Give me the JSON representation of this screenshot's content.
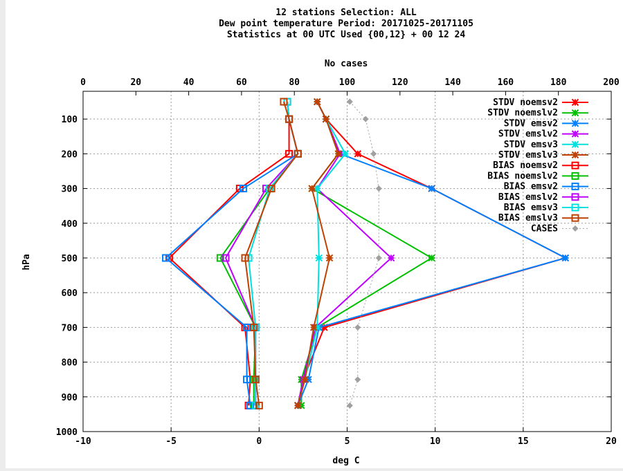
{
  "chart_data": {
    "type": "line",
    "title": [
      "12 stations Selection: ALL",
      "Dew point temperature  Period: 20171025-20171105",
      "Statistics at 00 UTC  Used {00,12} + 00 12 24"
    ],
    "xlabel": "deg C",
    "x2label": "No cases",
    "ylabel": "hPa",
    "xlim": [
      -10,
      20
    ],
    "x2lim": [
      0,
      200
    ],
    "ylim": [
      1000,
      20
    ],
    "x_ticks": [
      -10,
      -5,
      0,
      5,
      10,
      15,
      20
    ],
    "x2_ticks": [
      0,
      20,
      40,
      60,
      80,
      100,
      120,
      140,
      160,
      180,
      200
    ],
    "y_ticks": [
      100,
      200,
      300,
      400,
      500,
      600,
      700,
      800,
      900,
      1000
    ],
    "grid": true,
    "legend_position": "top-right",
    "series": [
      {
        "name": "STDV noemsv2",
        "color": "#ff0000",
        "marker": "star",
        "points": [
          [
            3.3,
            50
          ],
          [
            3.8,
            100
          ],
          [
            5.6,
            200
          ],
          [
            9.8,
            300
          ],
          [
            17.4,
            500
          ],
          [
            3.7,
            700
          ],
          [
            2.5,
            850
          ],
          [
            2.2,
            925
          ]
        ]
      },
      {
        "name": "STDV noemslv2",
        "color": "#00c000",
        "marker": "star",
        "points": [
          [
            3.3,
            50
          ],
          [
            3.8,
            100
          ],
          [
            4.5,
            200
          ],
          [
            3.0,
            300
          ],
          [
            9.8,
            500
          ],
          [
            3.3,
            700
          ],
          [
            2.4,
            850
          ],
          [
            2.4,
            925
          ]
        ]
      },
      {
        "name": "STDV emsv2",
        "color": "#0080ff",
        "marker": "star",
        "points": [
          [
            3.3,
            50
          ],
          [
            3.8,
            100
          ],
          [
            4.6,
            200
          ],
          [
            9.8,
            300
          ],
          [
            17.4,
            500
          ],
          [
            3.4,
            700
          ],
          [
            2.8,
            850
          ],
          [
            2.2,
            925
          ]
        ]
      },
      {
        "name": "STDV emslv2",
        "color": "#c000ff",
        "marker": "star",
        "points": [
          [
            3.3,
            50
          ],
          [
            3.8,
            100
          ],
          [
            4.6,
            200
          ],
          [
            3.3,
            300
          ],
          [
            7.5,
            500
          ],
          [
            3.2,
            700
          ],
          [
            2.5,
            850
          ],
          [
            2.2,
            925
          ]
        ]
      },
      {
        "name": "STDV emsv3",
        "color": "#00e0e0",
        "marker": "star",
        "points": [
          [
            3.3,
            50
          ],
          [
            3.8,
            100
          ],
          [
            4.9,
            200
          ],
          [
            3.3,
            300
          ],
          [
            3.4,
            500
          ],
          [
            3.3,
            700
          ],
          [
            2.6,
            850
          ],
          [
            2.2,
            925
          ]
        ]
      },
      {
        "name": "STDV emslv3",
        "color": "#c04000",
        "marker": "star",
        "points": [
          [
            3.3,
            50
          ],
          [
            3.8,
            100
          ],
          [
            4.5,
            200
          ],
          [
            3.0,
            300
          ],
          [
            4.0,
            500
          ],
          [
            3.1,
            700
          ],
          [
            2.6,
            850
          ],
          [
            2.2,
            925
          ]
        ]
      },
      {
        "name": "BIAS noemsv2",
        "color": "#ff0000",
        "marker": "square",
        "points": [
          [
            1.6,
            50
          ],
          [
            1.7,
            100
          ],
          [
            1.7,
            200
          ],
          [
            -1.1,
            300
          ],
          [
            -5.1,
            500
          ],
          [
            -0.8,
            700
          ],
          [
            -0.5,
            850
          ],
          [
            -0.6,
            925
          ]
        ]
      },
      {
        "name": "BIAS noemslv2",
        "color": "#00c000",
        "marker": "square",
        "points": [
          [
            1.6,
            50
          ],
          [
            1.7,
            100
          ],
          [
            2.2,
            200
          ],
          [
            0.6,
            300
          ],
          [
            -2.2,
            500
          ],
          [
            -0.2,
            700
          ],
          [
            -0.3,
            850
          ],
          [
            -0.3,
            925
          ]
        ]
      },
      {
        "name": "BIAS emsv2",
        "color": "#0080ff",
        "marker": "square",
        "points": [
          [
            1.6,
            50
          ],
          [
            1.7,
            100
          ],
          [
            2.2,
            200
          ],
          [
            -0.9,
            300
          ],
          [
            -5.3,
            500
          ],
          [
            -0.7,
            700
          ],
          [
            -0.7,
            850
          ],
          [
            -0.5,
            925
          ]
        ]
      },
      {
        "name": "BIAS emslv2",
        "color": "#c000ff",
        "marker": "square",
        "points": [
          [
            1.6,
            50
          ],
          [
            1.7,
            100
          ],
          [
            2.2,
            200
          ],
          [
            0.4,
            300
          ],
          [
            -1.9,
            500
          ],
          [
            -0.2,
            700
          ],
          [
            -0.2,
            850
          ],
          [
            -0.2,
            925
          ]
        ]
      },
      {
        "name": "BIAS emsv3",
        "color": "#00e0e0",
        "marker": "square",
        "points": [
          [
            1.6,
            50
          ],
          [
            1.7,
            100
          ],
          [
            2.2,
            200
          ],
          [
            0.6,
            300
          ],
          [
            -0.6,
            500
          ],
          [
            -0.2,
            700
          ],
          [
            -0.2,
            850
          ],
          [
            -0.2,
            925
          ]
        ]
      },
      {
        "name": "BIAS emslv3",
        "color": "#c04000",
        "marker": "square",
        "points": [
          [
            1.4,
            50
          ],
          [
            1.7,
            100
          ],
          [
            2.2,
            200
          ],
          [
            0.7,
            300
          ],
          [
            -0.8,
            500
          ],
          [
            -0.3,
            700
          ],
          [
            -0.2,
            850
          ],
          [
            0.0,
            925
          ]
        ]
      },
      {
        "name": "CASES",
        "color": "#a0a0a0",
        "marker": "diamond",
        "dashed": true,
        "axis": "x2",
        "points": [
          [
            101,
            50
          ],
          [
            107,
            100
          ],
          [
            110,
            200
          ],
          [
            112,
            300
          ],
          [
            112,
            500
          ],
          [
            104,
            700
          ],
          [
            104,
            850
          ],
          [
            101,
            925
          ]
        ]
      }
    ]
  }
}
